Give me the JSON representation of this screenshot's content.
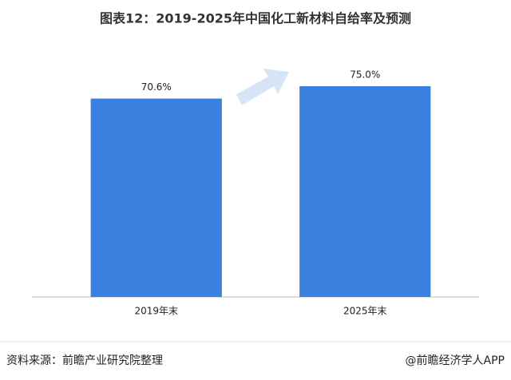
{
  "chart_data": {
    "type": "bar",
    "title": "图表12：2019-2025年中国化工新材料自给率及预测",
    "categories": [
      "2019年末",
      "2025年末"
    ],
    "values": [
      70.6,
      75.0
    ],
    "value_labels": [
      "70.6%",
      "75.0%"
    ],
    "color": "#3b80de",
    "ylim": [
      0,
      100
    ],
    "source": "资料来源：前瞻产业研究院整理",
    "footer": "@前瞻经济学人APP"
  }
}
